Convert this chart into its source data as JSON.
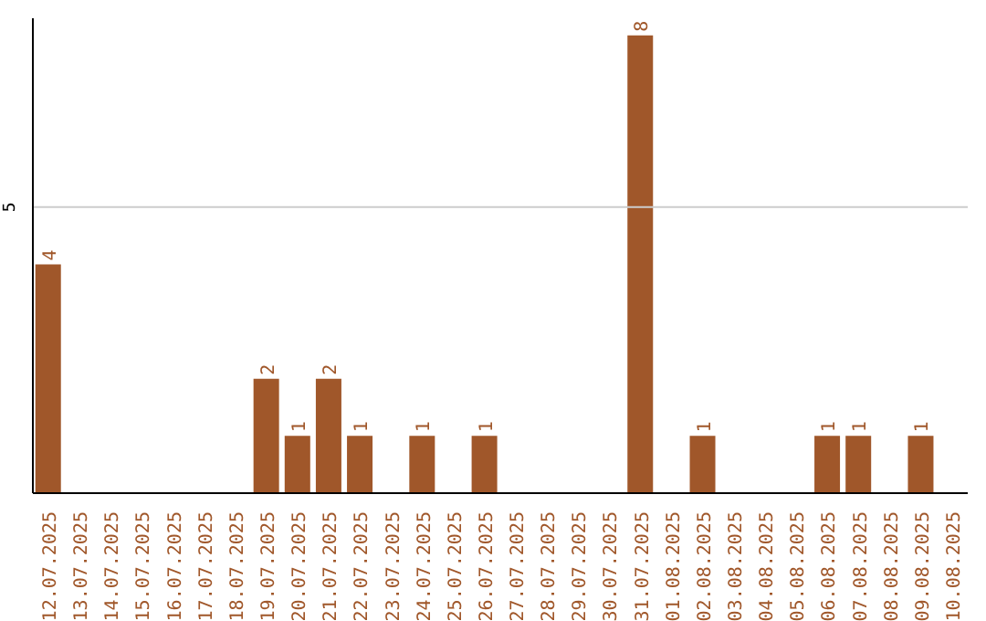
{
  "chart_data": {
    "type": "bar",
    "categories": [
      "12.07.2025",
      "13.07.2025",
      "14.07.2025",
      "15.07.2025",
      "16.07.2025",
      "17.07.2025",
      "18.07.2025",
      "19.07.2025",
      "20.07.2025",
      "21.07.2025",
      "22.07.2025",
      "23.07.2025",
      "24.07.2025",
      "25.07.2025",
      "26.07.2025",
      "27.07.2025",
      "28.07.2025",
      "29.07.2025",
      "30.07.2025",
      "31.07.2025",
      "01.08.2025",
      "02.08.2025",
      "03.08.2025",
      "04.08.2025",
      "05.08.2025",
      "06.08.2025",
      "07.08.2025",
      "08.08.2025",
      "09.08.2025",
      "10.08.2025"
    ],
    "values": [
      4,
      0,
      0,
      0,
      0,
      0,
      0,
      2,
      1,
      2,
      1,
      0,
      1,
      0,
      1,
      0,
      0,
      0,
      0,
      8,
      0,
      1,
      0,
      0,
      0,
      1,
      1,
      0,
      1,
      0
    ],
    "value_labels": [
      "4",
      null,
      null,
      null,
      null,
      null,
      null,
      "2",
      "1",
      "2",
      "1",
      null,
      "1",
      null,
      "1",
      null,
      null,
      null,
      null,
      "8",
      null,
      "1",
      null,
      null,
      null,
      "1",
      "1",
      null,
      "1",
      null
    ],
    "color": "#a0572a",
    "ylim": [
      0,
      8.3
    ],
    "yticks": [
      5
    ],
    "grid": "y"
  }
}
